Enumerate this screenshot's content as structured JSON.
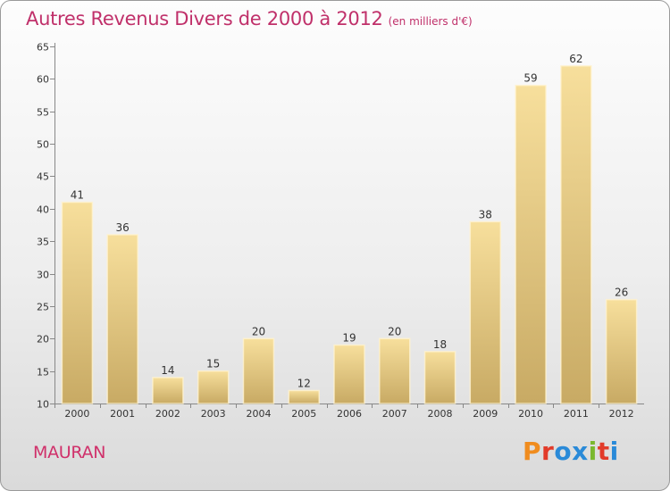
{
  "header": {
    "title": "Autres Revenus Divers de 2000 à 2012",
    "unit": "(en milliers d'€)"
  },
  "footer": {
    "commune": "MAURAN",
    "logo_text": "Proxiti",
    "logo_colors": [
      "#f08c1e",
      "#e23b2a",
      "#2a8ad8",
      "#2a8ad8",
      "#7ab82e",
      "#e23b2a",
      "#2a8ad8"
    ]
  },
  "colors": {
    "bar_light": "#f7df9c",
    "bar_dark": "#c8aa64",
    "title": "#c0306a",
    "axis": "#888888"
  },
  "chart_data": {
    "type": "bar",
    "categories": [
      "2000",
      "2001",
      "2002",
      "2003",
      "2004",
      "2005",
      "2006",
      "2007",
      "2008",
      "2009",
      "2010",
      "2011",
      "2012"
    ],
    "values": [
      41,
      36,
      14,
      15,
      20,
      12,
      19,
      20,
      18,
      38,
      59,
      62,
      26
    ],
    "ylim": [
      10,
      65
    ],
    "yticks": [
      10,
      15,
      20,
      25,
      30,
      35,
      40,
      45,
      50,
      55,
      60,
      65
    ],
    "grid": false,
    "show_data_labels": true
  }
}
